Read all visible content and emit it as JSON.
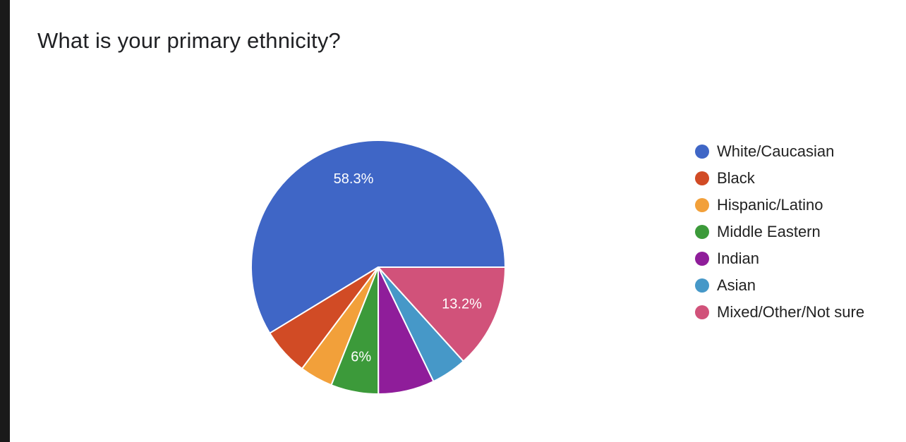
{
  "chart_data": {
    "type": "pie",
    "title": "What is your primary ethnicity?",
    "categories": [
      "White/Caucasian",
      "Black",
      "Hispanic/Latino",
      "Middle Eastern",
      "Indian",
      "Asian",
      "Mixed/Other/Not sure"
    ],
    "values": [
      58.3,
      6.0,
      4.2,
      6.0,
      7.1,
      4.5,
      13.2
    ],
    "colors": [
      "#3f66c6",
      "#d14b25",
      "#f2a03a",
      "#3c9a3a",
      "#8f1d9a",
      "#4698c8",
      "#d1527a"
    ],
    "data_labels": [
      "58.3%",
      "",
      "",
      "6%",
      "",
      "",
      "13.2%"
    ],
    "legend_position": "right"
  }
}
